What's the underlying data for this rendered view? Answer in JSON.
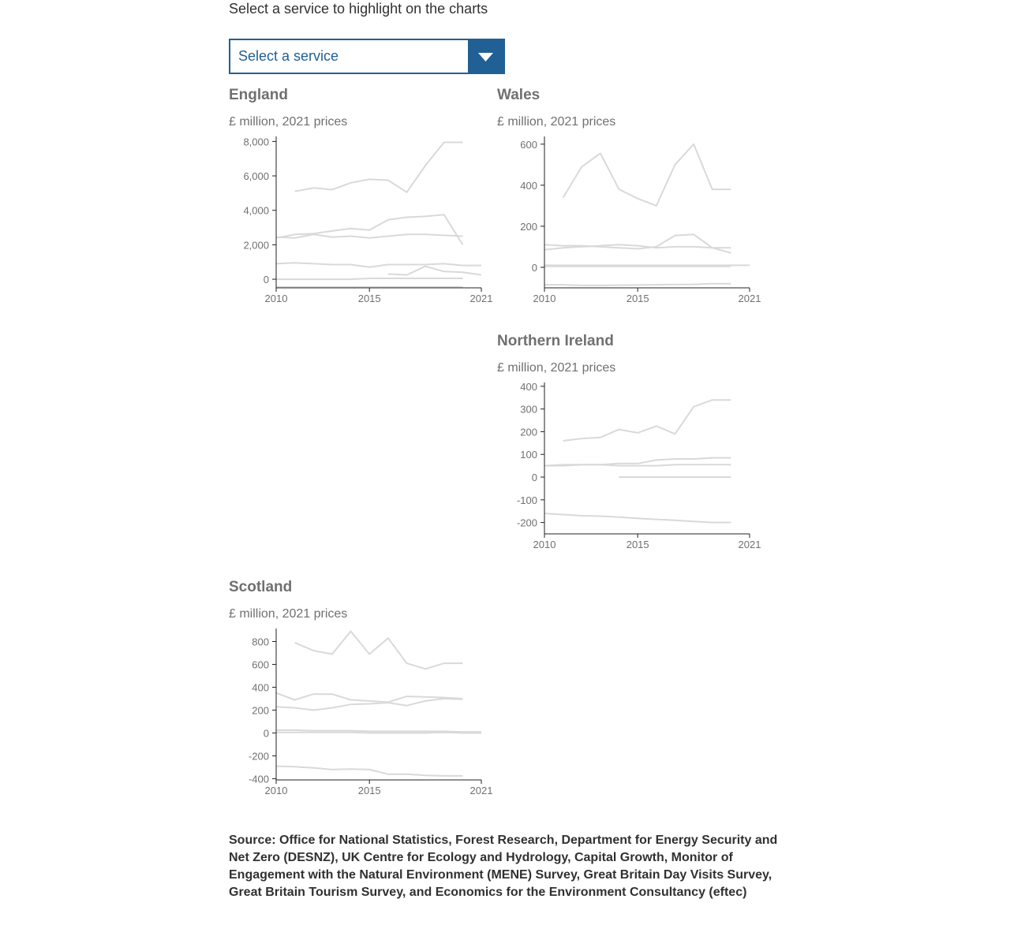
{
  "intro": "Select a service to highlight on the charts",
  "select": {
    "value": "Select a service"
  },
  "unit_label": "£ million, 2021 prices",
  "source": "Source: Office for National Statistics, Forest Research, Department for Energy Security and Net Zero (DESNZ), UK Centre for Ecology and Hydrology, Capital Growth, Monitor of Engagement with the Natural Environment (MENE) Survey, Great Britain Day Visits Survey, Great Britain Tourism Survey, and Economics for the Environment Consultancy (eftec)",
  "colors": {
    "line": "#d9d9d9",
    "axis": "#222222",
    "accent": "#206095",
    "title": "#707071"
  },
  "chart_data": [
    {
      "type": "line",
      "title": "England",
      "ylabel": "£ million, 2021 prices",
      "ylim": [
        -500,
        8200
      ],
      "yticks": [
        0,
        2000,
        4000,
        6000,
        8000
      ],
      "xlim": [
        2010,
        2021
      ],
      "xticks": [
        2010,
        2015,
        2021
      ],
      "series": [
        {
          "x": [
            2011,
            2012,
            2013,
            2014,
            2015,
            2016,
            2017,
            2018,
            2019,
            2020
          ],
          "values": [
            5100,
            5300,
            5200,
            5600,
            5800,
            5750,
            5050,
            6600,
            7950,
            7950
          ]
        },
        {
          "x": [
            2010,
            2011,
            2012,
            2013,
            2014,
            2015,
            2016,
            2017,
            2018,
            2019,
            2020
          ],
          "values": [
            2400,
            2600,
            2650,
            2800,
            2950,
            2850,
            3450,
            3600,
            3650,
            3750,
            2000
          ]
        },
        {
          "x": [
            2010,
            2011,
            2012,
            2013,
            2014,
            2015,
            2016,
            2017,
            2018,
            2019,
            2020
          ],
          "values": [
            2450,
            2400,
            2600,
            2450,
            2500,
            2400,
            2500,
            2600,
            2600,
            2550,
            2500
          ]
        },
        {
          "x": [
            2010,
            2011,
            2012,
            2013,
            2014,
            2015,
            2016,
            2017,
            2018,
            2019,
            2020,
            2021
          ],
          "values": [
            900,
            950,
            900,
            850,
            850,
            700,
            850,
            850,
            850,
            900,
            800,
            800
          ]
        },
        {
          "x": [
            2016,
            2017,
            2018,
            2019,
            2020,
            2021
          ],
          "values": [
            300,
            250,
            750,
            450,
            400,
            250
          ]
        },
        {
          "x": [
            2010,
            2011,
            2012,
            2013,
            2014,
            2015,
            2016,
            2017,
            2018,
            2019,
            2020
          ],
          "values": [
            0,
            0,
            0,
            0,
            0,
            50,
            50,
            50,
            50,
            50,
            50
          ]
        },
        {
          "x": [
            2010,
            2011,
            2012,
            2013,
            2014,
            2015,
            2016,
            2017,
            2018,
            2019,
            2020
          ],
          "values": [
            -450,
            -450,
            -450,
            -450,
            -450,
            -450,
            -450,
            -450,
            -450,
            -450,
            -450
          ]
        }
      ]
    },
    {
      "type": "line",
      "title": "Wales",
      "ylabel": "£ million, 2021 prices",
      "ylim": [
        -100,
        630
      ],
      "yticks": [
        0,
        200,
        400,
        600
      ],
      "xlim": [
        2010,
        2021
      ],
      "xticks": [
        2010,
        2015,
        2021
      ],
      "series": [
        {
          "x": [
            2011,
            2012,
            2013,
            2014,
            2015,
            2016,
            2017,
            2018,
            2019,
            2020
          ],
          "values": [
            340,
            490,
            555,
            380,
            335,
            300,
            500,
            600,
            380,
            380
          ]
        },
        {
          "x": [
            2010,
            2011,
            2012,
            2013,
            2014,
            2015,
            2016,
            2017,
            2018,
            2019,
            2020
          ],
          "values": [
            110,
            105,
            105,
            100,
            95,
            90,
            100,
            155,
            160,
            95,
            70
          ]
        },
        {
          "x": [
            2010,
            2011,
            2012,
            2013,
            2014,
            2015,
            2016,
            2017,
            2018,
            2019,
            2020
          ],
          "values": [
            85,
            95,
            100,
            105,
            110,
            105,
            95,
            100,
            100,
            95,
            95
          ]
        },
        {
          "x": [
            2010,
            2011,
            2012,
            2013,
            2014,
            2015,
            2016,
            2017,
            2018,
            2019,
            2020,
            2021
          ],
          "values": [
            10,
            10,
            10,
            10,
            10,
            10,
            10,
            10,
            10,
            10,
            10,
            10
          ]
        },
        {
          "x": [
            2010,
            2011,
            2012,
            2013,
            2014,
            2015,
            2016,
            2017,
            2018,
            2019,
            2020
          ],
          "values": [
            5,
            5,
            5,
            5,
            5,
            5,
            5,
            5,
            5,
            5,
            5
          ]
        },
        {
          "x": [
            2010,
            2011,
            2012,
            2013,
            2014,
            2015,
            2016,
            2017,
            2018,
            2019,
            2020
          ],
          "values": [
            -85,
            -85,
            -88,
            -88,
            -87,
            -86,
            -85,
            -84,
            -83,
            -80,
            -80
          ]
        }
      ]
    },
    {
      "type": "line",
      "title": "Northern Ireland",
      "ylabel": "£ million, 2021 prices",
      "ylim": [
        -250,
        410
      ],
      "yticks": [
        -200,
        -100,
        0,
        100,
        200,
        300,
        400
      ],
      "xlim": [
        2010,
        2021
      ],
      "xticks": [
        2010,
        2015,
        2021
      ],
      "series": [
        {
          "x": [
            2011,
            2012,
            2013,
            2014,
            2015,
            2016,
            2017,
            2018,
            2019,
            2020
          ],
          "values": [
            160,
            170,
            175,
            210,
            195,
            225,
            190,
            310,
            340,
            340
          ]
        },
        {
          "x": [
            2010,
            2011,
            2012,
            2013,
            2014,
            2015,
            2016,
            2017,
            2018,
            2019,
            2020
          ],
          "values": [
            50,
            55,
            55,
            55,
            60,
            60,
            75,
            80,
            80,
            85,
            85
          ]
        },
        {
          "x": [
            2010,
            2011,
            2012,
            2013,
            2014,
            2015,
            2016,
            2017,
            2018,
            2019,
            2020
          ],
          "values": [
            50,
            50,
            55,
            55,
            50,
            50,
            50,
            55,
            55,
            55,
            55
          ]
        },
        {
          "x": [
            2014,
            2015,
            2016,
            2017,
            2018,
            2019,
            2020
          ],
          "values": [
            0,
            0,
            0,
            0,
            0,
            0,
            0
          ]
        },
        {
          "x": [
            2010,
            2011,
            2012,
            2013,
            2014,
            2015,
            2016,
            2017,
            2018,
            2019,
            2020
          ],
          "values": [
            -160,
            -165,
            -170,
            -172,
            -176,
            -182,
            -186,
            -190,
            -195,
            -200,
            -200
          ]
        }
      ]
    },
    {
      "type": "line",
      "title": "Scotland",
      "ylabel": "£ million, 2021 prices",
      "ylim": [
        -410,
        900
      ],
      "yticks": [
        -400,
        -200,
        0,
        200,
        400,
        600,
        800
      ],
      "xlim": [
        2010,
        2021
      ],
      "xticks": [
        2010,
        2015,
        2021
      ],
      "series": [
        {
          "x": [
            2011,
            2012,
            2013,
            2014,
            2015,
            2016,
            2017,
            2018,
            2019,
            2020
          ],
          "values": [
            790,
            720,
            690,
            890,
            690,
            830,
            610,
            560,
            610,
            610
          ]
        },
        {
          "x": [
            2010,
            2011,
            2012,
            2013,
            2014,
            2015,
            2016,
            2017,
            2018,
            2019,
            2020
          ],
          "values": [
            350,
            290,
            340,
            340,
            290,
            280,
            270,
            320,
            315,
            310,
            300
          ]
        },
        {
          "x": [
            2010,
            2011,
            2012,
            2013,
            2014,
            2015,
            2016,
            2017,
            2018,
            2019,
            2020
          ],
          "values": [
            230,
            220,
            200,
            220,
            250,
            255,
            265,
            240,
            280,
            300,
            295
          ]
        },
        {
          "x": [
            2010,
            2011,
            2012,
            2013,
            2014,
            2015,
            2016,
            2017,
            2018,
            2019,
            2020,
            2021
          ],
          "values": [
            25,
            25,
            20,
            20,
            20,
            15,
            15,
            15,
            15,
            15,
            10,
            10
          ]
        },
        {
          "x": [
            2010,
            2011,
            2012,
            2013,
            2014,
            2015,
            2016,
            2017,
            2018,
            2019,
            2020,
            2021
          ],
          "values": [
            5,
            5,
            5,
            5,
            5,
            0,
            0,
            0,
            0,
            5,
            0,
            0
          ]
        },
        {
          "x": [
            2010,
            2011,
            2012,
            2013,
            2014,
            2015,
            2016,
            2017,
            2018,
            2019,
            2020
          ],
          "values": [
            -290,
            -295,
            -305,
            -320,
            -315,
            -320,
            -360,
            -360,
            -370,
            -375,
            -375
          ]
        }
      ]
    }
  ]
}
